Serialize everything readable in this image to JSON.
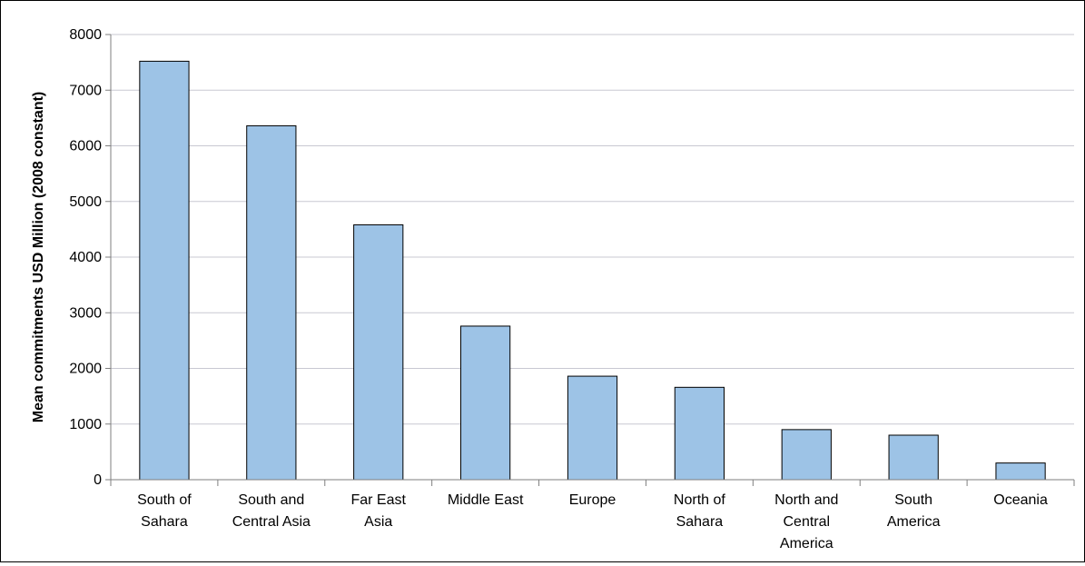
{
  "chart_data": {
    "type": "bar",
    "title": "",
    "xlabel": "",
    "ylabel": "Mean commitments USD Million (2008 constant)",
    "categories": [
      [
        "South of",
        "Sahara"
      ],
      [
        "South and",
        "Central Asia"
      ],
      [
        "Far East",
        "Asia"
      ],
      [
        "Middle East"
      ],
      [
        "Europe"
      ],
      [
        "North of",
        "Sahara"
      ],
      [
        "North and",
        "Central",
        "America"
      ],
      [
        "South",
        "America"
      ],
      [
        "Oceania"
      ]
    ],
    "values": [
      7520,
      6360,
      4580,
      2760,
      1860,
      1660,
      900,
      800,
      300
    ],
    "ylim": [
      0,
      8000
    ],
    "yticks": [
      0,
      1000,
      2000,
      3000,
      4000,
      5000,
      6000,
      7000,
      8000
    ],
    "grid": true,
    "legend": "none",
    "colors": {
      "bar_fill": "#9DC3E6",
      "bar_stroke": "#000000",
      "plot_bg": "#ffffff",
      "gridline": "#C8C8D2",
      "axis": "#7F7F7F"
    }
  }
}
